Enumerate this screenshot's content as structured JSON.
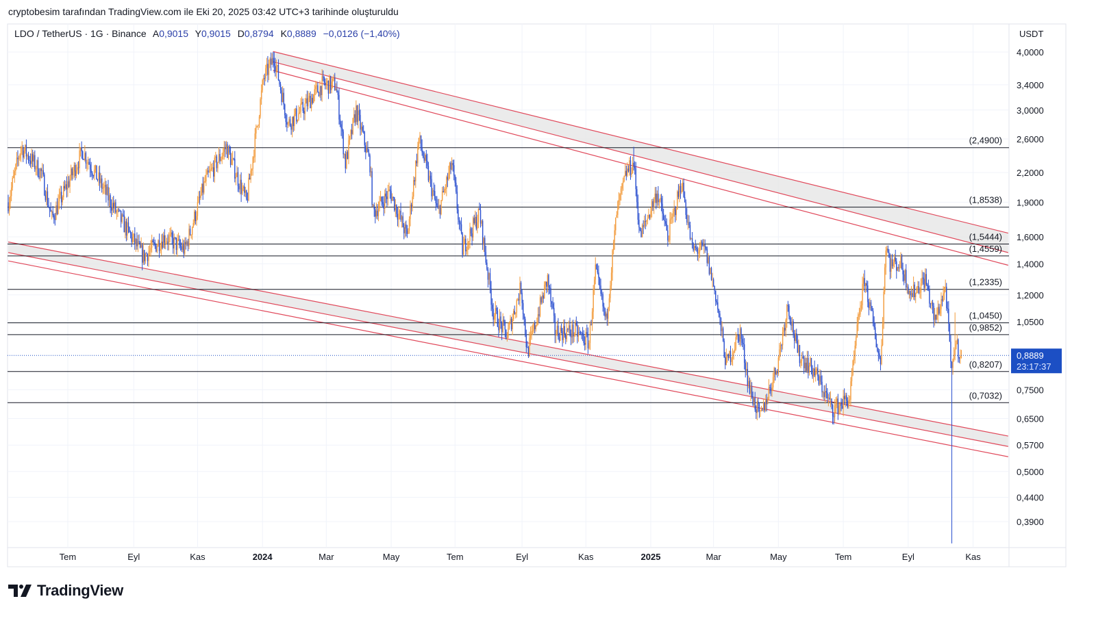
{
  "credit": "cryptobesim tarafından TradingView.com ile Eki 20, 2025 03:42 UTC+3 tarihinde oluşturuldu",
  "legend": {
    "symbol": "LDO / TetherUS · 1G · Binance",
    "open_label": "A",
    "open": "0,9015",
    "high_label": "Y",
    "high": "0,9015",
    "low_label": "D",
    "low": "0,8794",
    "close_label": "K",
    "close": "0,8889",
    "change": "−0,0126 (−1,40%)"
  },
  "currency": "USDT",
  "current_price": {
    "label": "0,8889",
    "countdown": "23:17:37",
    "value": 0.8889
  },
  "logo_text": "TradingView",
  "colors": {
    "up": "#f29a3a",
    "down": "#2a4fcf",
    "trendline": "#e0485a",
    "band": "#e6e6e6",
    "price_label_bg": "#1c4fc4",
    "level_line": "#131722"
  },
  "chart_data": {
    "type": "candlestick",
    "title": "LDO / TetherUS · 1G · Binance",
    "scale": "log",
    "ylim": [
      0.35,
      4.0
    ],
    "x_unit": "days since 2023-05-28 (approx)",
    "xlim": [
      0,
      940
    ],
    "y_ticks": [
      {
        "v": 4.0,
        "label": "4,0000"
      },
      {
        "v": 3.4,
        "label": "3,4000"
      },
      {
        "v": 3.0,
        "label": "3,0000"
      },
      {
        "v": 2.6,
        "label": "2,6000"
      },
      {
        "v": 2.2,
        "label": "2,2000"
      },
      {
        "v": 1.9,
        "label": "1,9000"
      },
      {
        "v": 1.6,
        "label": "1,6000"
      },
      {
        "v": 1.4,
        "label": "1,4000"
      },
      {
        "v": 1.2,
        "label": "1,2000"
      },
      {
        "v": 1.05,
        "label": "1,0500"
      },
      {
        "v": 0.75,
        "label": "0,7500"
      },
      {
        "v": 0.65,
        "label": "0,6500"
      },
      {
        "v": 0.57,
        "label": "0,5700"
      },
      {
        "v": 0.5,
        "label": "0,5000"
      },
      {
        "v": 0.44,
        "label": "0,4400"
      },
      {
        "v": 0.39,
        "label": "0,3900"
      }
    ],
    "x_ticks": [
      {
        "day": 56,
        "label": "Tem",
        "bold": false
      },
      {
        "day": 118,
        "label": "Eyl",
        "bold": false
      },
      {
        "day": 178,
        "label": "Kas",
        "bold": false
      },
      {
        "day": 239,
        "label": "2024",
        "bold": true
      },
      {
        "day": 299,
        "label": "Mar",
        "bold": false
      },
      {
        "day": 360,
        "label": "May",
        "bold": false
      },
      {
        "day": 420,
        "label": "Tem",
        "bold": false
      },
      {
        "day": 483,
        "label": "Eyl",
        "bold": false
      },
      {
        "day": 543,
        "label": "Kas",
        "bold": false
      },
      {
        "day": 604,
        "label": "2025",
        "bold": true
      },
      {
        "day": 663,
        "label": "Mar",
        "bold": false
      },
      {
        "day": 724,
        "label": "May",
        "bold": false
      },
      {
        "day": 785,
        "label": "Tem",
        "bold": false
      },
      {
        "day": 846,
        "label": "Eyl",
        "bold": false
      },
      {
        "day": 907,
        "label": "Kas",
        "bold": false
      }
    ],
    "levels": [
      {
        "v": 2.49,
        "label": "(2,4900)"
      },
      {
        "v": 1.8538,
        "label": "(1,8538)"
      },
      {
        "v": 1.5444,
        "label": "(1,5444)"
      },
      {
        "v": 1.4559,
        "label": "(1,4559)"
      },
      {
        "v": 1.2335,
        "label": "(1,2335)"
      },
      {
        "v": 1.045,
        "label": "(1,0450)"
      },
      {
        "v": 0.9852,
        "label": "(0,9852)"
      },
      {
        "v": 0.8207,
        "label": "(0,8207)"
      },
      {
        "v": 0.7032,
        "label": "(0,7032)"
      }
    ],
    "channels": [
      {
        "name": "upper",
        "lines": [
          [
            [
              249,
              4.01
            ],
            [
              940,
              1.63
            ]
          ],
          [
            [
              249,
              3.81
            ],
            [
              940,
              1.48
            ]
          ],
          [
            [
              249,
              3.65
            ],
            [
              940,
              1.39
            ]
          ]
        ]
      },
      {
        "name": "lower",
        "lines": [
          [
            [
              0,
              1.56
            ],
            [
              940,
              0.596
            ]
          ],
          [
            [
              0,
              1.48
            ],
            [
              940,
              0.566
            ]
          ],
          [
            [
              0,
              1.42
            ],
            [
              940,
              0.538
            ]
          ]
        ]
      }
    ],
    "price_path": [
      [
        0,
        1.9
      ],
      [
        12,
        2.5
      ],
      [
        31,
        2.2
      ],
      [
        41,
        1.75
      ],
      [
        70,
        2.45
      ],
      [
        102,
        1.8
      ],
      [
        127,
        1.45
      ],
      [
        147,
        1.6
      ],
      [
        166,
        1.5
      ],
      [
        185,
        2.1
      ],
      [
        205,
        2.5
      ],
      [
        224,
        1.9
      ],
      [
        240,
        3.5
      ],
      [
        250,
        3.9
      ],
      [
        263,
        2.8
      ],
      [
        276,
        3.0
      ],
      [
        295,
        3.4
      ],
      [
        308,
        3.4
      ],
      [
        317,
        2.3
      ],
      [
        327,
        3.0
      ],
      [
        340,
        2.3
      ],
      [
        343,
        1.8
      ],
      [
        359,
        2.0
      ],
      [
        375,
        1.6
      ],
      [
        386,
        2.6
      ],
      [
        404,
        1.8
      ],
      [
        417,
        2.3
      ],
      [
        427,
        1.5
      ],
      [
        443,
        1.8
      ],
      [
        456,
        1.1
      ],
      [
        469,
        0.98
      ],
      [
        482,
        1.25
      ],
      [
        488,
        0.9
      ],
      [
        507,
        1.3
      ],
      [
        514,
        1.0
      ],
      [
        533,
        1.0
      ],
      [
        546,
        0.95
      ],
      [
        552,
        1.35
      ],
      [
        562,
        1.05
      ],
      [
        572,
        1.8
      ],
      [
        581,
        2.2
      ],
      [
        588,
        2.3
      ],
      [
        594,
        1.6
      ],
      [
        610,
        2.0
      ],
      [
        620,
        1.6
      ],
      [
        633,
        2.1
      ],
      [
        643,
        1.5
      ],
      [
        655,
        1.5
      ],
      [
        665,
        1.2
      ],
      [
        675,
        0.85
      ],
      [
        688,
        1.0
      ],
      [
        697,
        0.75
      ],
      [
        707,
        0.65
      ],
      [
        713,
        0.72
      ],
      [
        723,
        0.85
      ],
      [
        733,
        1.15
      ],
      [
        742,
        0.9
      ],
      [
        758,
        0.82
      ],
      [
        775,
        0.68
      ],
      [
        791,
        0.72
      ],
      [
        800,
        1.1
      ],
      [
        805,
        1.3
      ],
      [
        820,
        0.85
      ],
      [
        825,
        1.55
      ],
      [
        829,
        1.4
      ],
      [
        839,
        1.4
      ],
      [
        849,
        1.2
      ],
      [
        862,
        1.3
      ],
      [
        871,
        1.05
      ],
      [
        881,
        1.25
      ],
      [
        887,
        0.8
      ],
      [
        890,
        0.95
      ],
      [
        896,
        0.8889
      ]
    ],
    "spikes": [
      {
        "day": 887,
        "low": 0.35
      },
      {
        "day": 890,
        "high": 1.1
      },
      {
        "day": 250,
        "high": 4.0
      },
      {
        "day": 588,
        "high": 2.5
      }
    ]
  }
}
